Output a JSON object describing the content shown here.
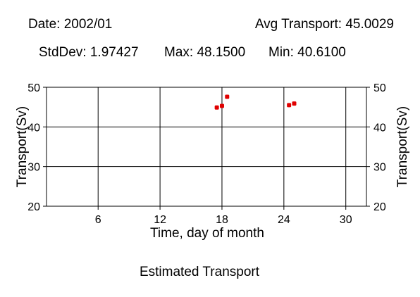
{
  "header": {
    "date_label": "Date: 2002/01",
    "avg_label": "Avg Transport: 45.0029",
    "stddev_label": "StdDev: 1.97427",
    "max_label": "Max: 48.1500",
    "min_label": "Min: 40.6100"
  },
  "chart_data": {
    "type": "scatter",
    "title": "Estimated Transport",
    "xlabel": "Time, day of month",
    "ylabel": "Transport(Sv)",
    "xlim": [
      1,
      32
    ],
    "ylim": [
      20,
      50
    ],
    "xticks": [
      6,
      12,
      18,
      24,
      30
    ],
    "yticks": [
      20,
      30,
      40,
      50
    ],
    "grid": true,
    "point_color": "#e00000",
    "points": [
      {
        "x": 17.5,
        "y": 44.9
      },
      {
        "x": 18.0,
        "y": 45.3
      },
      {
        "x": 18.5,
        "y": 47.6
      },
      {
        "x": 24.5,
        "y": 45.5
      },
      {
        "x": 25.0,
        "y": 45.9
      }
    ]
  }
}
